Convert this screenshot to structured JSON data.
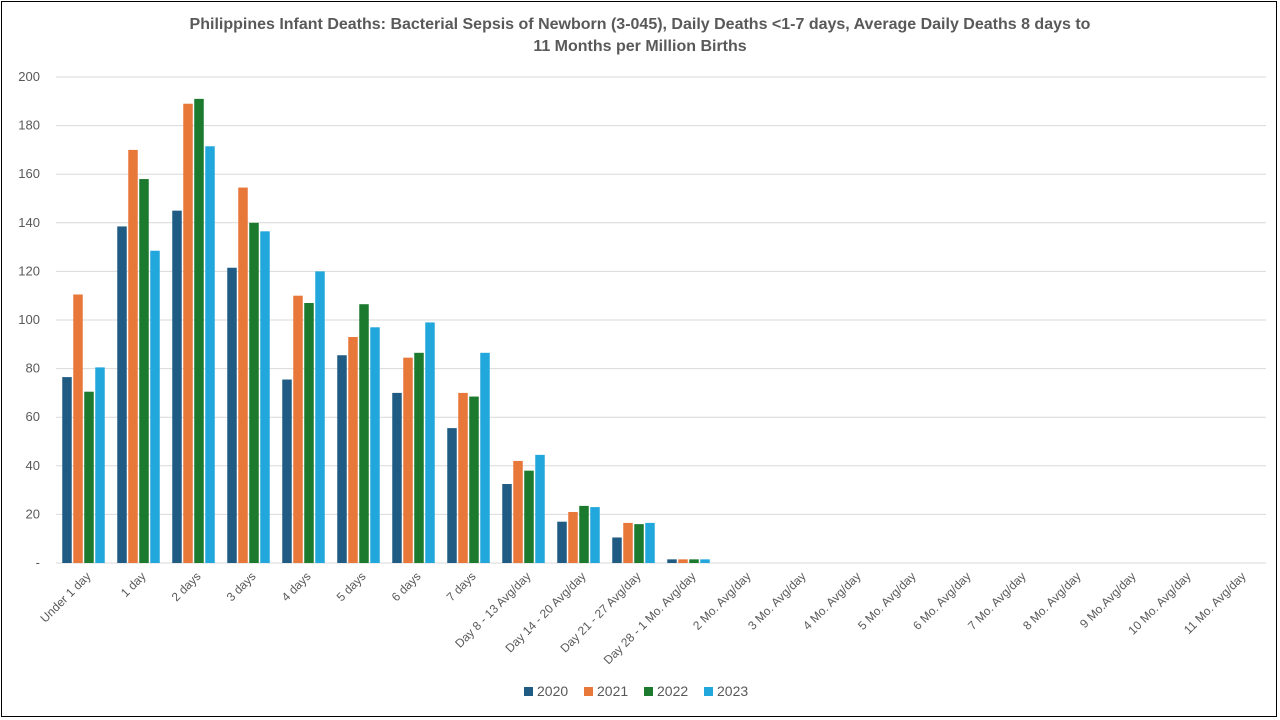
{
  "chart_data": {
    "type": "bar",
    "title_line1": "Philippines Infant Deaths: Bacterial Sepsis of Newborn (3-045), Daily Deaths <1-7 days, Average Daily Deaths 8 days to",
    "title_line2": "11 Months per Million Births",
    "xlabel": "",
    "ylabel": "",
    "ylim": [
      0,
      200
    ],
    "yticks": [
      "-",
      "20",
      "40",
      "60",
      "80",
      "100",
      "120",
      "140",
      "160",
      "180",
      "200"
    ],
    "ytick_values": [
      0,
      20,
      40,
      60,
      80,
      100,
      120,
      140,
      160,
      180,
      200
    ],
    "grid": true,
    "legend_position": "bottom",
    "categories": [
      "Under 1 day",
      "1 day",
      "2 days",
      "3 days",
      "4 days",
      "5 days",
      "6 days",
      "7 days",
      "Day 8 - 13 Avg/day",
      "Day 14 - 20 Avg/day",
      "Day 21 - 27 Avg/day",
      "Day 28 - 1 Mo. Avg/day",
      "2 Mo. Avg/day",
      "3 Mo.  Avg/day",
      "4 Mo. Avg/day",
      "5 Mo.  Avg/day",
      "6 Mo. Avg/day",
      "7 Mo. Avg/day",
      "8 Mo. Avg/day",
      "9 Mo.Avg/day",
      "10 Mo. Avg/day",
      "11 Mo. Avg/day"
    ],
    "series": [
      {
        "name": "2020",
        "color": "#1f5b82",
        "values": [
          76.5,
          138.5,
          145,
          121.5,
          75.5,
          85.5,
          70,
          55.5,
          32.5,
          17,
          10.5,
          1.5,
          0,
          0,
          0,
          0,
          0,
          0,
          0,
          0,
          0,
          0
        ]
      },
      {
        "name": "2021",
        "color": "#e8773a",
        "values": [
          110.5,
          170,
          189,
          154.5,
          110,
          93,
          84.5,
          70,
          42,
          21,
          16.5,
          1.5,
          0,
          0,
          0,
          0,
          0,
          0,
          0,
          0,
          0,
          0
        ]
      },
      {
        "name": "2022",
        "color": "#1b7a2d",
        "values": [
          70.5,
          158,
          191,
          140,
          107,
          106.5,
          86.5,
          68.5,
          38,
          23.5,
          16,
          1.5,
          0,
          0,
          0,
          0,
          0,
          0,
          0,
          0,
          0,
          0
        ]
      },
      {
        "name": "2023",
        "color": "#22a7dc",
        "values": [
          80.5,
          128.5,
          171.5,
          136.5,
          120,
          97,
          99,
          86.5,
          44.5,
          23,
          16.5,
          1.5,
          0,
          0,
          0,
          0,
          0,
          0,
          0,
          0,
          0,
          0
        ]
      }
    ]
  }
}
